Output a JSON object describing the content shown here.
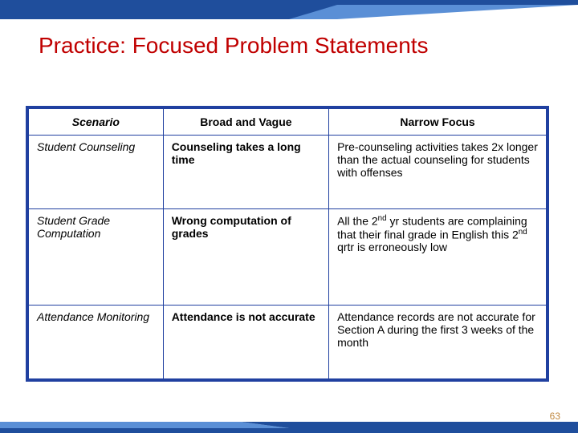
{
  "title": "Practice: Focused Problem Statements",
  "colors": {
    "title": "#c00000",
    "table_border": "#2040a0",
    "banner_dark": "#1f4e9c",
    "banner_light": "#5a8fd6",
    "page_num": "#c08840",
    "bg": "#ffffff"
  },
  "table": {
    "columns": [
      "Scenario",
      "Broad and Vague",
      "Narrow Focus"
    ],
    "col_widths_pct": [
      26,
      32,
      42
    ],
    "rows": [
      {
        "scenario": "Student Counseling",
        "broad": "Counseling takes a long time",
        "narrow": "Pre-counseling activities takes 2x longer than the actual counseling for students with offenses"
      },
      {
        "scenario": "Student Grade Computation",
        "broad": "Wrong computation of grades",
        "narrow": "All the 2nd yr students are complaining that their final grade in English this 2nd qrtr is erroneously low"
      },
      {
        "scenario": "Attendance Monitoring",
        "broad": "Attendance is not accurate",
        "narrow": "Attendance records are not accurate for Section A during the first 3 weeks of the month"
      }
    ]
  },
  "page_number": "63",
  "fonts": {
    "title_size_pt": 28,
    "body_size_pt": 14,
    "page_num_size_pt": 12
  }
}
